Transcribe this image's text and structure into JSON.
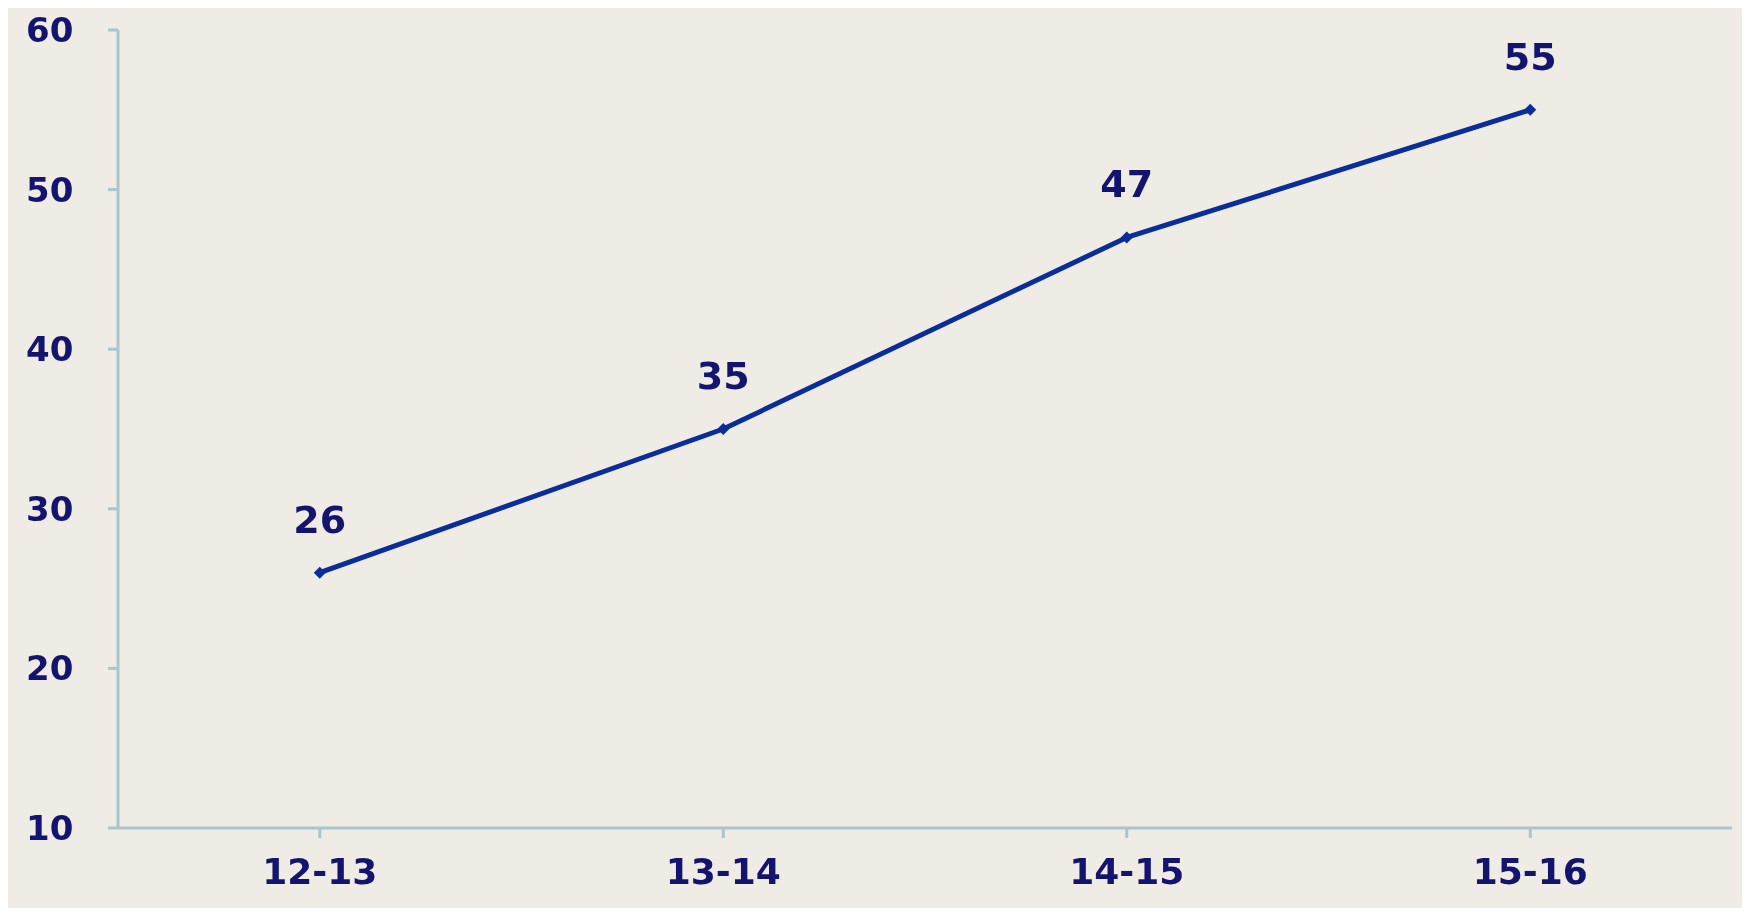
{
  "chart_data": {
    "type": "line",
    "categories": [
      "12-13",
      "13-14",
      "14-15",
      "15-16"
    ],
    "series": [
      {
        "color": "#0b2d9a",
        "values": [
          26,
          35,
          47,
          55
        ]
      }
    ],
    "ylim": [
      10,
      60
    ],
    "yticks": [
      10,
      20,
      30,
      40,
      50,
      60
    ],
    "grid": false,
    "marker": "diamond",
    "line_style": "solid",
    "data_labels": true
  }
}
